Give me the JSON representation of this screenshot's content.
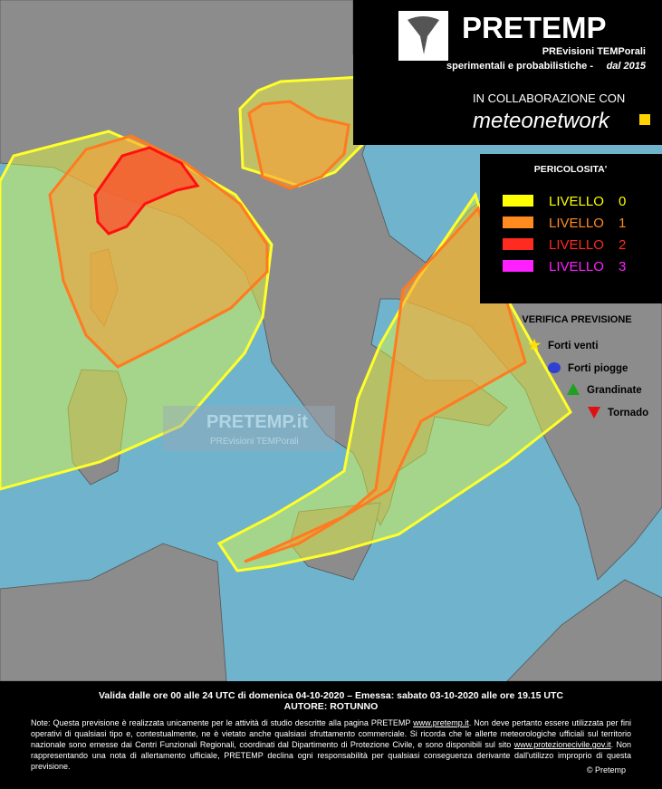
{
  "header": {
    "title": "PRETEMP",
    "subtitle": "PREvisioni TEMPorali",
    "tagline": "sperimentali e probabilistiche -",
    "since": "dal 2015",
    "collaboration": "IN COLLABORAZIONE CON",
    "partner": "meteonetwork"
  },
  "watermark": {
    "title": "PRETEMP.it",
    "subtitle": "PREvisioni TEMPorali"
  },
  "legend": {
    "title": "PERICOLOSITA'",
    "levels": [
      {
        "label": "LIVELLO",
        "number": "0",
        "color": "#ffff00"
      },
      {
        "label": "LIVELLO",
        "number": "1",
        "color": "#ff8a20"
      },
      {
        "label": "LIVELLO",
        "number": "2",
        "color": "#ff2a20"
      },
      {
        "label": "LIVELLO",
        "number": "3",
        "color": "#ff20ff"
      }
    ]
  },
  "verification": {
    "title": "VERIFICA PREVISIONE",
    "items": [
      {
        "label": "Forti venti",
        "symbol": "star",
        "color": "#ffe000"
      },
      {
        "label": "Forti piogge",
        "symbol": "circle",
        "color": "#3040d0"
      },
      {
        "label": "Grandinate",
        "symbol": "triangle-up",
        "color": "#20a020"
      },
      {
        "label": "Tornado",
        "symbol": "triangle-down",
        "color": "#e01010"
      }
    ]
  },
  "footer": {
    "validity": "Valida dalle ore 00 alle 24 UTC di domenica 04-10-2020 – Emessa: sabato 03-10-2020 alle ore 19.15 UTC",
    "author": "AUTORE: ROTUNNO",
    "note": [
      "Note: Questa previsione è realizzata unicamente per le attività di studio descritte alla pagina PRETEMP",
      "www.pretemp.it",
      ". Non deve pertanto essere utilizzata per fini operativi di qualsiasi tipo e, contestualmente, ne è vietato anche qualsiasi sfruttamento commerciale. Si ricorda che le allerte meteorologiche ufficiali sul territorio nazionale sono emesse dai Centri Funzionali Regionali, coordinati dal Dipartimento di Protezione Civile, e sono disponibili sul sito",
      "www.protezionecivile.gov.it",
      ". Non rappresentando una nota di allertamento ufficiale, PRETEMP declina ogni responsabilità per qualsiasi conseguenza derivante dall'utilizzo improprio di questa previsione."
    ],
    "copyright": "© Pretemp"
  }
}
